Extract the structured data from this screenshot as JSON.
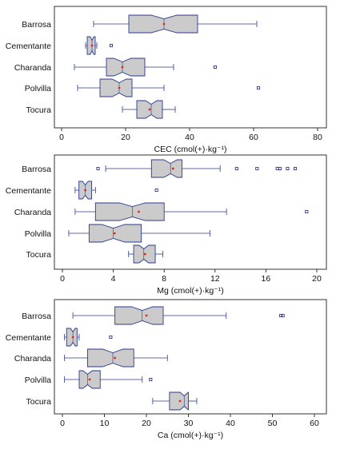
{
  "chart_data": [
    {
      "type": "boxplot",
      "notched": true,
      "xlabel": "CEC (cmol(+)·kg⁻¹)",
      "xlim": [
        0,
        80
      ],
      "xticks": [
        0,
        20,
        40,
        60,
        80
      ],
      "categories": [
        "Barrosa",
        "Cementante",
        "Charanda",
        "Polvilla",
        "Tocura"
      ],
      "boxes": [
        {
          "category": "Barrosa",
          "min": 10,
          "q1": 21,
          "median": 32,
          "q3": 42.5,
          "max": 61,
          "mean": 32,
          "outliers": []
        },
        {
          "category": "Cementante",
          "min": 7.5,
          "q1": 8,
          "median": 9.5,
          "q3": 10.5,
          "max": 11,
          "mean": 9.5,
          "outliers": [
            15.5
          ]
        },
        {
          "category": "Charanda",
          "min": 4,
          "q1": 14,
          "median": 19,
          "q3": 26,
          "max": 35,
          "mean": 19,
          "outliers": [
            48
          ]
        },
        {
          "category": "Polvilla",
          "min": 5,
          "q1": 12,
          "median": 18,
          "q3": 22,
          "max": 32,
          "mean": 18,
          "outliers": [
            61.5
          ]
        },
        {
          "category": "Tocura",
          "min": 19,
          "q1": 23.5,
          "median": 28,
          "q3": 31.5,
          "max": 35.5,
          "mean": 27.5,
          "outliers": []
        }
      ]
    },
    {
      "type": "boxplot",
      "notched": true,
      "xlabel": "Mg (cmol(+)·kg⁻¹)",
      "xlim": [
        0,
        20
      ],
      "xticks": [
        0,
        4,
        8,
        12,
        16,
        20
      ],
      "categories": [
        "Barrosa",
        "Cementante",
        "Charanda",
        "Polvilla",
        "Tocura"
      ],
      "boxes": [
        {
          "category": "Barrosa",
          "min": 3.4,
          "q1": 7,
          "median": 8.5,
          "q3": 9.4,
          "max": 12.4,
          "mean": 8.7,
          "outliers": [
            2.8,
            13.7,
            15.3,
            16.9,
            17.1,
            17.7,
            18.3
          ]
        },
        {
          "category": "Cementante",
          "min": 1,
          "q1": 1.3,
          "median": 1.8,
          "q3": 2.3,
          "max": 2.6,
          "mean": 1.8,
          "outliers": [
            7.4
          ]
        },
        {
          "category": "Charanda",
          "min": 1,
          "q1": 2.6,
          "median": 5.5,
          "q3": 8,
          "max": 12.9,
          "mean": 6,
          "outliers": [
            19.2
          ]
        },
        {
          "category": "Polvilla",
          "min": 0.5,
          "q1": 2.1,
          "median": 4,
          "q3": 6.2,
          "max": 11.6,
          "mean": 4.1,
          "outliers": []
        },
        {
          "category": "Tocura",
          "min": 5.2,
          "q1": 5.6,
          "median": 6.4,
          "q3": 7.3,
          "max": 7.9,
          "mean": 6.5,
          "outliers": []
        }
      ]
    },
    {
      "type": "boxplot",
      "notched": true,
      "xlabel": "Ca (cmol(+)·kg⁻¹)",
      "xlim": [
        0,
        60
      ],
      "xticks": [
        0,
        10,
        20,
        30,
        40,
        50,
        60
      ],
      "categories": [
        "Barrosa",
        "Cementante",
        "Charanda",
        "Polvilla",
        "Tocura"
      ],
      "boxes": [
        {
          "category": "Barrosa",
          "min": 2.5,
          "q1": 12.5,
          "median": 19,
          "q3": 24,
          "max": 39,
          "mean": 20,
          "outliers": [
            52,
            52.5
          ]
        },
        {
          "category": "Cementante",
          "min": 0.5,
          "q1": 1,
          "median": 2.5,
          "q3": 3.5,
          "max": 4,
          "mean": 2.5,
          "outliers": [
            11.5
          ]
        },
        {
          "category": "Charanda",
          "min": 0.5,
          "q1": 6,
          "median": 12,
          "q3": 17,
          "max": 25,
          "mean": 12.5,
          "outliers": []
        },
        {
          "category": "Polvilla",
          "min": 0.5,
          "q1": 4,
          "median": 6,
          "q3": 9,
          "max": 19,
          "mean": 6.5,
          "outliers": [
            21
          ]
        },
        {
          "category": "Tocura",
          "min": 21.5,
          "q1": 25.5,
          "median": 29,
          "q3": 30,
          "max": 32,
          "mean": 28,
          "outliers": []
        }
      ]
    }
  ],
  "style": {
    "box_fill": "#cbcbcb",
    "box_stroke": "#2b3a8f",
    "whisker_color": "#2b3a8f",
    "mean_color": "#e0281e",
    "outlier_color": "#2b3a8f",
    "frame_color": "#333333",
    "text_color": "#111111"
  }
}
